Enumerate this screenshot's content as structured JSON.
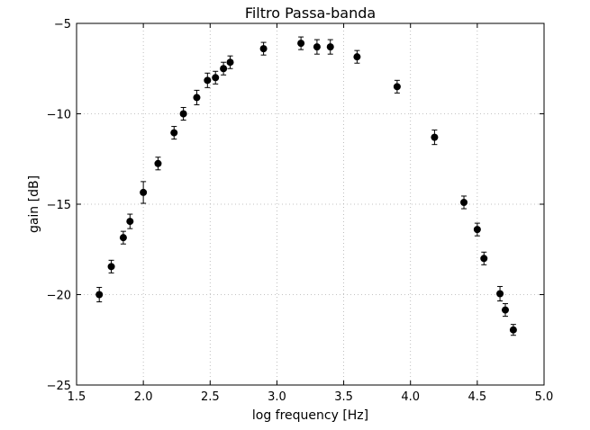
{
  "chart_data": {
    "type": "scatter",
    "title": "Filtro Passa-banda",
    "xlabel": "log frequency [Hz]",
    "ylabel": "gain [dB]",
    "xlim": [
      1.5,
      5.0
    ],
    "ylim": [
      -25,
      -5
    ],
    "xticks": [
      1.5,
      2.0,
      2.5,
      3.0,
      3.5,
      4.0,
      4.5,
      5.0
    ],
    "xtick_labels": [
      "1.5",
      "2.0",
      "2.5",
      "3.0",
      "3.5",
      "4.0",
      "4.5",
      "5.0"
    ],
    "yticks": [
      -25,
      -20,
      -15,
      -10,
      -5
    ],
    "ytick_labels": [
      "−25",
      "−20",
      "−15",
      "−10",
      "−5"
    ],
    "grid": true,
    "marker_color": "#000000",
    "series": [
      {
        "x": [
          1.67,
          1.76,
          1.85,
          1.9,
          2.0,
          2.11,
          2.23,
          2.3,
          2.4,
          2.48,
          2.54,
          2.6,
          2.65,
          2.9,
          3.18,
          3.3,
          3.4,
          3.6,
          3.9,
          4.18,
          4.4,
          4.5,
          4.55,
          4.67,
          4.71,
          4.77
        ],
        "y": [
          -20.0,
          -18.45,
          -16.85,
          -15.95,
          -14.35,
          -12.75,
          -11.05,
          -10.0,
          -9.1,
          -8.15,
          -8.0,
          -7.5,
          -7.15,
          -6.4,
          -6.1,
          -6.3,
          -6.3,
          -6.85,
          -8.5,
          -11.3,
          -14.9,
          -16.4,
          -18.0,
          -19.95,
          -20.85,
          -21.95
        ],
        "yerr": [
          0.4,
          0.35,
          0.35,
          0.4,
          0.6,
          0.35,
          0.35,
          0.35,
          0.4,
          0.4,
          0.35,
          0.35,
          0.35,
          0.35,
          0.35,
          0.4,
          0.4,
          0.35,
          0.35,
          0.4,
          0.35,
          0.35,
          0.35,
          0.4,
          0.35,
          0.3
        ]
      }
    ]
  }
}
